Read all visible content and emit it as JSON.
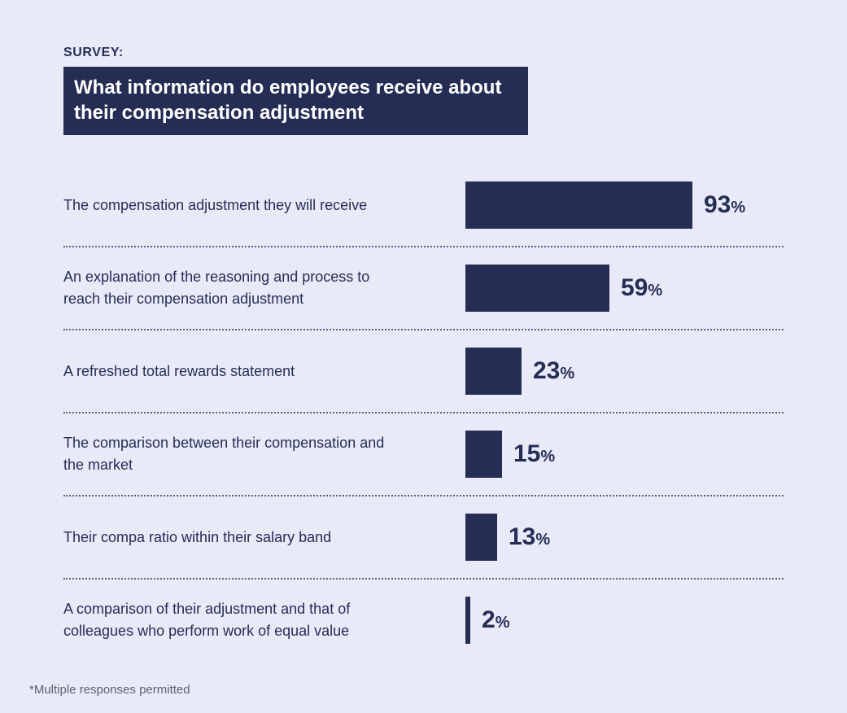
{
  "header": {
    "eyebrow": "SURVEY:",
    "title": "What information do employees receive about their compensation adjustment"
  },
  "footer": {
    "note": "*Multiple responses permitted"
  },
  "colors": {
    "navy": "#252d54",
    "background": "#e9eaf8",
    "muted_text": "#5c6273"
  },
  "chart_data": {
    "type": "bar",
    "orientation": "horizontal",
    "title": "What information do employees receive about their compensation adjustment",
    "xlabel": "",
    "ylabel": "",
    "xlim": [
      0,
      100
    ],
    "unit": "%",
    "grid": false,
    "legend": false,
    "categories": [
      "The compensation adjustment they will receive",
      "An explanation of the reasoning and process to reach their compensation adjustment",
      "A refreshed total rewards statement",
      "The comparison between their compensation and the market",
      "Their compa ratio within their salary band",
      "A comparison of their adjustment and that of colleagues who perform work of equal value"
    ],
    "values": [
      93,
      59,
      23,
      15,
      13,
      2
    ],
    "items": [
      {
        "label": "The compensation adjustment they will receive",
        "value": 93
      },
      {
        "label": "An explanation of the reasoning and process to reach their compensation adjustment",
        "value": 59
      },
      {
        "label": "A refreshed total rewards statement",
        "value": 23
      },
      {
        "label": "The comparison between their compensation and the market",
        "value": 15
      },
      {
        "label": "Their compa ratio within their salary band",
        "value": 13
      },
      {
        "label": "A comparison of their adjustment and that of colleagues who perform work of equal value",
        "value": 2
      }
    ]
  }
}
